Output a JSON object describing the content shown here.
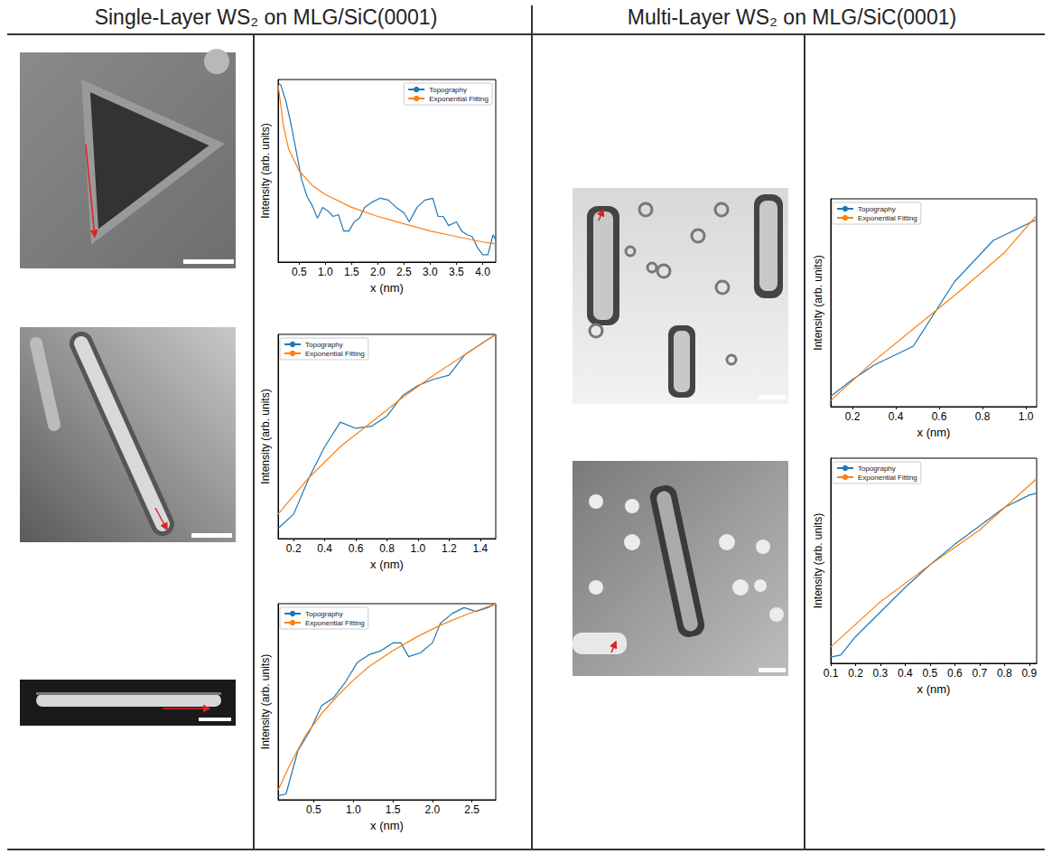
{
  "titles": [
    "Single-Layer WS₂ on MLG/SiC(0001)",
    "Multi-Layer WS₂ on MLG/SiC(0001)"
  ],
  "chart_data": [
    {
      "type": "line",
      "x_label": "x (nm)",
      "y_label": "Intensity (arb. units)",
      "xlim": [
        0.1,
        4.25
      ],
      "xticks": [
        0.5,
        {
          "value": 1,
          "label": "1.0"
        },
        1.5,
        {
          "value": 2,
          "label": "2.0"
        },
        2.5,
        {
          "value": 3,
          "label": "3.0"
        },
        3.5,
        {
          "value": 4,
          "label": "4.0"
        }
      ],
      "ylim": [
        0,
        1
      ],
      "tick_labels": "x",
      "grid": false,
      "legend": "upper right",
      "series": [
        {
          "name": "Topography",
          "color": "#1f77b4",
          "x": [
            0.1,
            0.15,
            0.25,
            0.35,
            0.45,
            0.55,
            0.65,
            0.75,
            0.85,
            0.95,
            1.05,
            1.15,
            1.25,
            1.35,
            1.45,
            1.55,
            1.65,
            1.75,
            1.9,
            2.05,
            2.2,
            2.35,
            2.5,
            2.6,
            2.75,
            2.9,
            3.05,
            3.15,
            3.25,
            3.35,
            3.5,
            3.6,
            3.7,
            3.8,
            3.9,
            4.0,
            4.1,
            4.2,
            4.25
          ],
          "values": [
            0.98,
            0.97,
            0.88,
            0.75,
            0.6,
            0.45,
            0.36,
            0.31,
            0.24,
            0.3,
            0.28,
            0.25,
            0.26,
            0.17,
            0.17,
            0.22,
            0.24,
            0.3,
            0.33,
            0.35,
            0.34,
            0.3,
            0.27,
            0.22,
            0.3,
            0.34,
            0.35,
            0.25,
            0.25,
            0.2,
            0.22,
            0.17,
            0.15,
            0.14,
            0.08,
            0.04,
            0.04,
            0.15,
            0.12
          ]
        },
        {
          "name": "Exponential Fitting",
          "color": "#ff7f0e",
          "x": [
            0.1,
            0.2,
            0.3,
            0.5,
            0.75,
            1.0,
            1.5,
            2.0,
            2.5,
            3.0,
            3.5,
            4.0,
            4.25
          ],
          "values": [
            0.97,
            0.75,
            0.62,
            0.5,
            0.42,
            0.37,
            0.3,
            0.25,
            0.21,
            0.17,
            0.14,
            0.11,
            0.1
          ]
        }
      ]
    },
    {
      "type": "line",
      "x_label": "x (nm)",
      "y_label": "Intensity (arb. units)",
      "xlim": [
        0.1,
        1.5
      ],
      "xticks": [
        0.2,
        0.4,
        0.6,
        0.8,
        {
          "value": 1,
          "label": "1.0"
        },
        1.2,
        1.4
      ],
      "ylim": [
        0,
        1
      ],
      "tick_labels": "x",
      "grid": false,
      "legend": "upper left",
      "series": [
        {
          "name": "Topography",
          "color": "#1f77b4",
          "x": [
            0.1,
            0.2,
            0.3,
            0.4,
            0.5,
            0.6,
            0.7,
            0.8,
            0.9,
            1.0,
            1.1,
            1.2,
            1.3,
            1.4,
            1.5
          ],
          "values": [
            0.05,
            0.12,
            0.3,
            0.45,
            0.57,
            0.54,
            0.55,
            0.6,
            0.7,
            0.75,
            0.78,
            0.8,
            0.9,
            0.95,
            1.0
          ]
        },
        {
          "name": "Exponential Fitting",
          "color": "#ff7f0e",
          "x": [
            0.1,
            0.3,
            0.5,
            0.7,
            0.9,
            1.1,
            1.3,
            1.5
          ],
          "values": [
            0.12,
            0.3,
            0.45,
            0.57,
            0.69,
            0.8,
            0.9,
            1.0
          ]
        }
      ]
    },
    {
      "type": "line",
      "x_label": "x (nm)",
      "y_label": "Intensity (arb. units)",
      "xlim": [
        0.05,
        2.8
      ],
      "xticks": [
        0.5,
        {
          "value": 1,
          "label": "1.0"
        },
        1.5,
        {
          "value": 2,
          "label": "2.0"
        },
        2.5
      ],
      "ylim": [
        0,
        1
      ],
      "tick_labels": "x",
      "grid": false,
      "legend": "upper left",
      "series": [
        {
          "name": "Topography",
          "color": "#1f77b4",
          "x": [
            0.05,
            0.15,
            0.3,
            0.45,
            0.6,
            0.75,
            0.9,
            1.05,
            1.2,
            1.35,
            1.5,
            1.6,
            1.7,
            1.85,
            2.0,
            2.1,
            2.25,
            2.4,
            2.55,
            2.7,
            2.8
          ],
          "values": [
            0.02,
            0.03,
            0.25,
            0.35,
            0.48,
            0.52,
            0.6,
            0.7,
            0.74,
            0.76,
            0.8,
            0.8,
            0.73,
            0.75,
            0.8,
            0.9,
            0.95,
            0.98,
            0.96,
            0.98,
            1.0
          ]
        },
        {
          "name": "Exponential Fitting",
          "color": "#ff7f0e",
          "x": [
            0.05,
            0.2,
            0.4,
            0.6,
            0.8,
            1.0,
            1.2,
            1.5,
            1.8,
            2.1,
            2.4,
            2.8
          ],
          "values": [
            0.05,
            0.18,
            0.33,
            0.44,
            0.53,
            0.61,
            0.68,
            0.76,
            0.83,
            0.89,
            0.94,
            1.0
          ]
        }
      ]
    },
    {
      "type": "line",
      "x_label": "x (nm)",
      "y_label": "Intensity (arb. units)",
      "xlim": [
        0.1,
        1.05
      ],
      "xticks": [
        0.2,
        0.4,
        0.6,
        0.8,
        {
          "value": 1,
          "label": "1.0"
        }
      ],
      "ylim": [
        0,
        1
      ],
      "tick_labels": "x",
      "grid": false,
      "legend": "upper left",
      "series": [
        {
          "name": "Topography",
          "color": "#1f77b4",
          "x": [
            0.1,
            0.2,
            0.3,
            0.48,
            0.67,
            0.85,
            1.05
          ],
          "values": [
            0.05,
            0.13,
            0.2,
            0.29,
            0.6,
            0.8,
            0.9
          ]
        },
        {
          "name": "Exponential Fitting",
          "color": "#ff7f0e",
          "x": [
            0.1,
            0.3,
            0.5,
            0.7,
            0.9,
            1.05
          ],
          "values": [
            0.03,
            0.22,
            0.39,
            0.56,
            0.74,
            0.92
          ]
        }
      ]
    },
    {
      "type": "line",
      "x_label": "x (nm)",
      "y_label": "Intensity (arb. units)",
      "xlim": [
        0.1,
        0.93
      ],
      "xticks": [
        0.1,
        0.2,
        0.3,
        0.4,
        0.5,
        0.6,
        0.7,
        0.8,
        0.9
      ],
      "ylim": [
        0,
        1
      ],
      "tick_labels": "x",
      "grid": false,
      "legend": "upper left",
      "series": [
        {
          "name": "Topography",
          "color": "#1f77b4",
          "x": [
            0.1,
            0.14,
            0.2,
            0.3,
            0.4,
            0.5,
            0.6,
            0.7,
            0.8,
            0.9,
            0.93
          ],
          "values": [
            0.03,
            0.04,
            0.13,
            0.25,
            0.37,
            0.48,
            0.58,
            0.67,
            0.76,
            0.82,
            0.83
          ]
        },
        {
          "name": "Exponential Fitting",
          "color": "#ff7f0e",
          "x": [
            0.1,
            0.3,
            0.5,
            0.7,
            0.93
          ],
          "values": [
            0.08,
            0.3,
            0.48,
            0.65,
            0.9
          ]
        }
      ]
    }
  ]
}
